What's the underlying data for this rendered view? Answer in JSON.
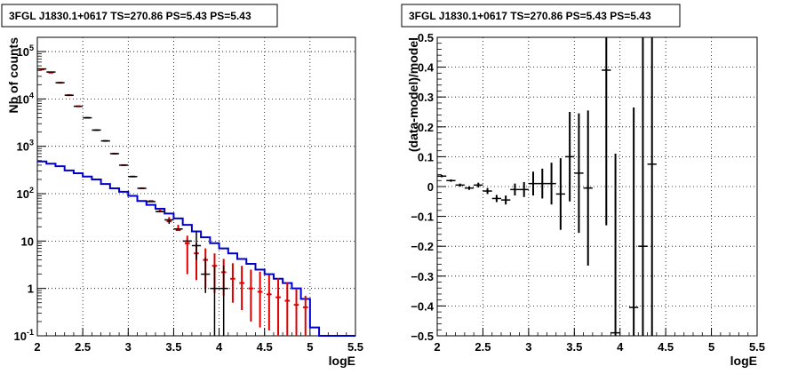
{
  "chart_data": [
    {
      "type": "step-histogram",
      "title": "3FGL J1830.1+0617 TS=270.86 PS=5.43 PS=5.43",
      "xlabel": "logE",
      "ylabel": "Nb of counts",
      "xlim": [
        2,
        5.5
      ],
      "ylim": [
        0.1,
        200000
      ],
      "yscale": "log",
      "grid": true,
      "x_ticks": [
        "2",
        "2.5",
        "3",
        "3.5",
        "4",
        "4.5",
        "5",
        "5.5"
      ],
      "y_ticks": [
        "10^{-1}",
        "1",
        "10",
        "10^{2}",
        "10^{3}",
        "10^{4}",
        "10^{5}"
      ],
      "bin_width": 0.1,
      "model_total": {
        "color": "#e00000",
        "x": [
          2.05,
          2.15,
          2.25,
          2.35,
          2.45,
          2.55,
          2.65,
          2.75,
          2.85,
          2.95,
          3.05,
          3.15,
          3.25,
          3.35,
          3.45,
          3.55,
          3.65,
          3.75,
          3.85,
          3.95,
          4.05,
          4.15,
          4.25,
          4.35,
          4.45,
          4.55,
          4.65,
          4.75,
          4.85,
          4.95
        ],
        "y": [
          42000,
          36000,
          22000,
          12000,
          7000,
          4000,
          2200,
          1300,
          700,
          400,
          230,
          130,
          70,
          42,
          26,
          17,
          9,
          5.5,
          4,
          3,
          2.2,
          1.6,
          1.3,
          1,
          0.85,
          0.75,
          0.65,
          0.55,
          0.45,
          0.4
        ],
        "err_lo": [
          0,
          0,
          0,
          0,
          0,
          0,
          0,
          0,
          0,
          0,
          0,
          0,
          0,
          0,
          0,
          0,
          7,
          4,
          3,
          2.2,
          1.5,
          1.1,
          0.95,
          0.8,
          0.7,
          0.62,
          0.55,
          0.47,
          0.38,
          0.35
        ],
        "err_hi": [
          0,
          0,
          0,
          0,
          0,
          0,
          0,
          0,
          0,
          0,
          0,
          0,
          0,
          6,
          6,
          5,
          4,
          3.5,
          3,
          2.5,
          2,
          1.8,
          1.7,
          1.5,
          1.4,
          1.2,
          1,
          0.8,
          0.5,
          0.3
        ]
      },
      "model_component": {
        "color": "#0000cc",
        "x": [
          2.05,
          2.15,
          2.25,
          2.35,
          2.45,
          2.55,
          2.65,
          2.75,
          2.85,
          2.95,
          3.05,
          3.15,
          3.25,
          3.35,
          3.45,
          3.55,
          3.65,
          3.75,
          3.85,
          3.95,
          4.05,
          4.15,
          4.25,
          4.35,
          4.45,
          4.55,
          4.65,
          4.75,
          4.85,
          4.95,
          5.05,
          5.15,
          5.25,
          5.35,
          5.45
        ],
        "y": [
          480,
          430,
          380,
          310,
          270,
          230,
          200,
          160,
          130,
          110,
          90,
          70,
          58,
          48,
          38,
          30,
          22,
          16,
          12,
          9,
          7,
          5.5,
          4.2,
          3.3,
          2.5,
          2,
          1.6,
          1.3,
          1,
          0.6,
          0.15,
          0.1,
          0.1,
          0.1,
          0.1
        ]
      },
      "data": {
        "color": "#000000",
        "x": [
          2.05,
          2.15,
          2.25,
          2.35,
          2.45,
          2.55,
          2.65,
          2.75,
          2.85,
          2.95,
          3.05,
          3.15,
          3.25,
          3.35,
          3.45,
          3.55,
          3.65,
          3.75,
          3.85,
          3.95,
          4.05
        ],
        "y": [
          43000,
          37000,
          22000,
          12000,
          7000,
          4000,
          2200,
          1300,
          700,
          400,
          230,
          130,
          68,
          42,
          28,
          18,
          10,
          8,
          2,
          1,
          1
        ],
        "err_lo": [
          0,
          0,
          0,
          0,
          0,
          0,
          0,
          0,
          0,
          0,
          0,
          0,
          0,
          0,
          5,
          0,
          0,
          4,
          1.2,
          0.9,
          0.9
        ],
        "err_hi": [
          0,
          0,
          0,
          0,
          0,
          0,
          0,
          0,
          0,
          0,
          0,
          0,
          0,
          0,
          0,
          0,
          0,
          8,
          2.5,
          2,
          2
        ]
      }
    },
    {
      "type": "scatter-errorbar",
      "title": "3FGL J1830.1+0617 TS=270.86 PS=5.43 PS=5.43",
      "xlabel": "logE",
      "ylabel": "(data-model)/model",
      "xlim": [
        2,
        5.5
      ],
      "ylim": [
        -0.5,
        0.5
      ],
      "grid": true,
      "x_ticks": [
        "2",
        "2.5",
        "3",
        "3.5",
        "4",
        "4.5",
        "5",
        "5.5"
      ],
      "y_ticks": [
        "−0.5",
        "−0.4",
        "−0.3",
        "−0.2",
        "−0.1",
        "0",
        "0.1",
        "0.2",
        "0.3",
        "0.4",
        "0.5"
      ],
      "bin_width": 0.1,
      "points": {
        "x": [
          2.05,
          2.15,
          2.25,
          2.35,
          2.45,
          2.55,
          2.65,
          2.75,
          2.85,
          2.95,
          3.05,
          3.15,
          3.25,
          3.35,
          3.45,
          3.55,
          3.65,
          3.85,
          3.95,
          4.15,
          4.25,
          4.35
        ],
        "y": [
          0.035,
          0.02,
          0.005,
          -0.005,
          0.005,
          -0.015,
          -0.04,
          -0.045,
          -0.01,
          -0.01,
          0.01,
          0.01,
          0.01,
          -0.025,
          0.1,
          0.045,
          -0.005,
          0.39,
          -0.49,
          -0.405,
          -0.2,
          0.075
        ],
        "err": [
          0.004,
          0.004,
          0.005,
          0.006,
          0.008,
          0.01,
          0.012,
          0.015,
          0.02,
          0.025,
          0.04,
          0.05,
          0.07,
          0.12,
          0.15,
          0.2,
          0.26,
          0.52,
          0.6,
          0.67,
          0.72,
          0.8
        ]
      }
    }
  ]
}
